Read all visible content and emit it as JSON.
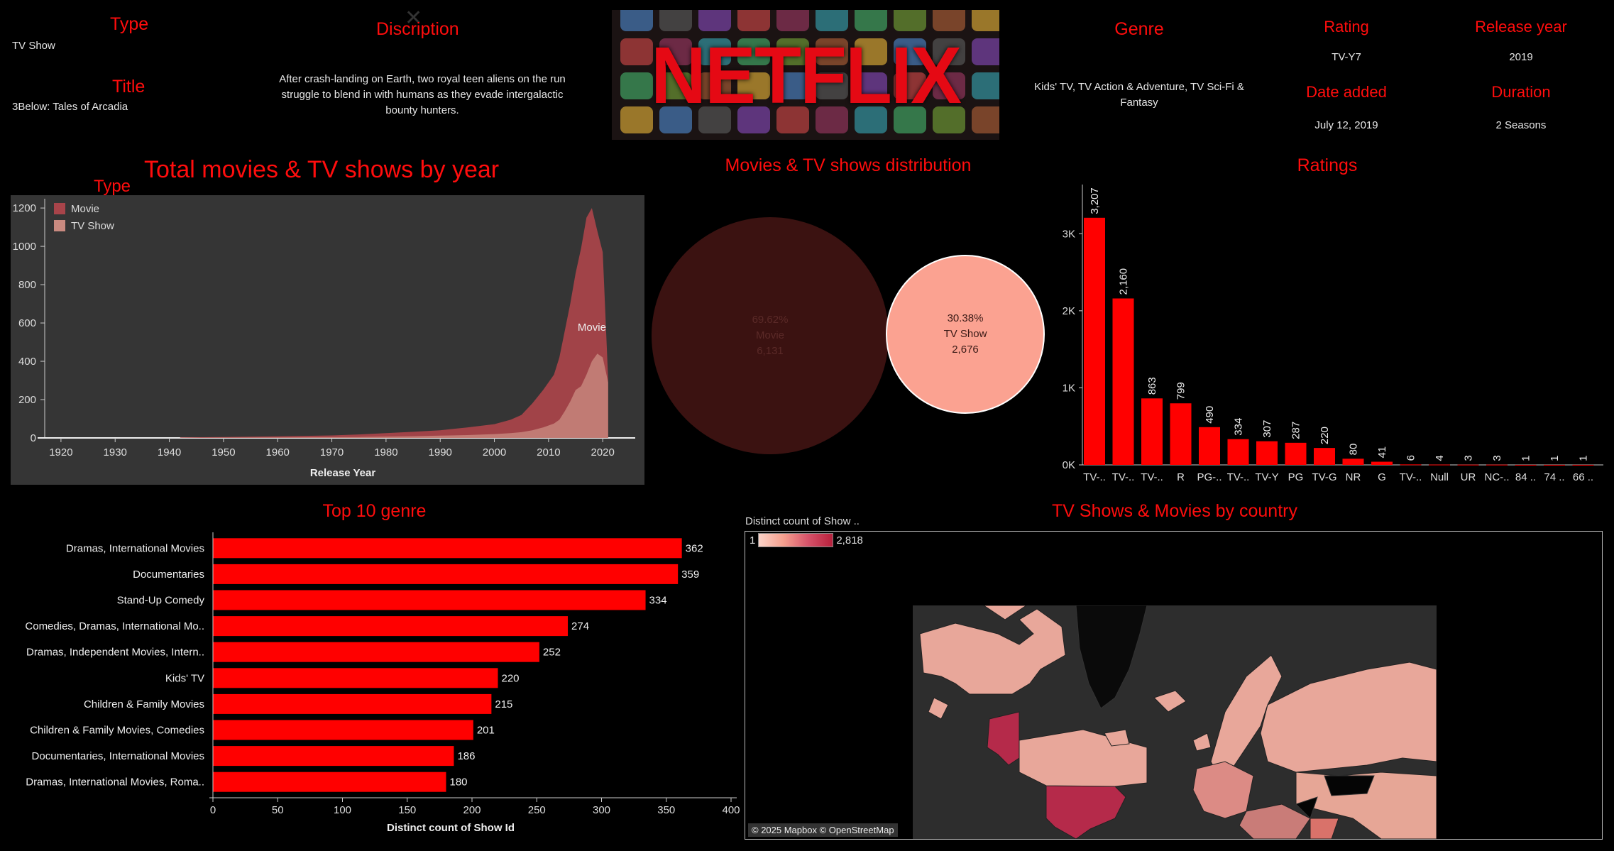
{
  "details": {
    "type_label": "Type",
    "type_value": "TV Show",
    "title_label": "Title",
    "title_value": "3Below: Tales of Arcadia",
    "description_label": "Discription",
    "description_value": "After crash-landing on Earth, two royal teen aliens on the run struggle to blend in with humans as they evade intergalactic bounty hunters.",
    "logo_text": "NETFLIX",
    "genre_label": "Genre",
    "genre_value": "Kids' TV, TV Action & Adventure, TV Sci-Fi & Fantasy",
    "rating_label": "Rating",
    "rating_value": "TV-Y7",
    "release_year_label": "Release year",
    "release_year_value": "2019",
    "date_added_label": "Date added",
    "date_added_value": "July 12, 2019",
    "duration_label": "Duration",
    "duration_value": "2 Seasons"
  },
  "year_chart": {
    "title": "Total movies & TV shows by year",
    "legend_title": "Type",
    "legend": [
      {
        "name": "Movie",
        "color": "#a8444a"
      },
      {
        "name": "TV Show",
        "color": "#c98a80"
      }
    ],
    "mark_label": "Movie",
    "xlabel": "Release Year",
    "x_ticks": [
      "1920",
      "1930",
      "1940",
      "1950",
      "1960",
      "1970",
      "1980",
      "1990",
      "2000",
      "2010",
      "2020"
    ],
    "y_ticks": [
      "0",
      "200",
      "400",
      "600",
      "800",
      "1000",
      "1200"
    ]
  },
  "distribution": {
    "title": "Movies & TV shows distribution",
    "movie_pct": "69.62%",
    "movie_label": "Movie",
    "movie_count": "6,131",
    "tv_pct": "30.38%",
    "tv_label": "TV Show",
    "tv_count": "2,676",
    "movie_color": "#3b1211",
    "tv_color": "#fba291"
  },
  "ratings": {
    "title": "Ratings",
    "y_ticks": [
      "0K",
      "1K",
      "2K",
      "3K"
    ]
  },
  "genres": {
    "title": "Top 10 genre",
    "xlabel": "Distinct count of Show Id",
    "x_ticks": [
      "0",
      "50",
      "100",
      "150",
      "200",
      "250",
      "300",
      "350",
      "400"
    ]
  },
  "country": {
    "title": "TV Shows & Movies by country",
    "legend_title": "Distinct count of Show ..",
    "legend_min": "1",
    "legend_max": "2,818",
    "attribution": "© 2025 Mapbox © OpenStreetMap"
  },
  "chart_data": [
    {
      "type": "area",
      "title": "Total movies & TV shows by year",
      "xlabel": "Release Year",
      "ylabel": "",
      "xlim": [
        1917,
        2026
      ],
      "ylim": [
        0,
        1230
      ],
      "series": [
        {
          "name": "Movie",
          "x": [
            1942,
            1950,
            1960,
            1970,
            1975,
            1980,
            1985,
            1990,
            1995,
            2000,
            2003,
            2005,
            2007,
            2009,
            2011,
            2012,
            2013,
            2014,
            2015,
            2016,
            2017,
            2018,
            2019,
            2020,
            2021
          ],
          "values": [
            3,
            5,
            8,
            13,
            18,
            25,
            32,
            40,
            55,
            72,
            95,
            120,
            180,
            250,
            330,
            420,
            560,
            700,
            860,
            990,
            1150,
            1200,
            1080,
            970,
            310
          ]
        },
        {
          "name": "TV Show",
          "x": [
            1942,
            1950,
            1960,
            1970,
            1975,
            1980,
            1985,
            1990,
            1995,
            2000,
            2003,
            2005,
            2007,
            2009,
            2011,
            2012,
            2013,
            2014,
            2015,
            2016,
            2017,
            2018,
            2019,
            2020,
            2021
          ],
          "values": [
            1,
            2,
            3,
            4,
            5,
            7,
            9,
            12,
            15,
            20,
            25,
            30,
            40,
            55,
            75,
            95,
            140,
            190,
            250,
            270,
            330,
            400,
            440,
            420,
            290
          ]
        }
      ]
    },
    {
      "type": "bubble",
      "title": "Movies & TV shows distribution",
      "categories": [
        "Movie",
        "TV Show"
      ],
      "values": [
        6131,
        2676
      ],
      "percent": [
        69.62,
        30.38
      ]
    },
    {
      "type": "bar",
      "title": "Ratings",
      "categories": [
        "TV-..",
        "TV-..",
        "TV-..",
        "R",
        "PG-..",
        "TV-..",
        "TV-Y",
        "PG",
        "TV-G",
        "NR",
        "G",
        "TV-..",
        "Null",
        "UR",
        "NC-..",
        "84 ..",
        "74 ..",
        "66 .."
      ],
      "values": [
        3207,
        2160,
        863,
        799,
        490,
        334,
        307,
        287,
        220,
        80,
        41,
        6,
        4,
        3,
        3,
        1,
        1,
        1
      ],
      "labels": [
        "3,207",
        "2,160",
        "863",
        "799",
        "490",
        "334",
        "307",
        "287",
        "220",
        "80",
        "41",
        "6",
        "4",
        "3",
        "3",
        "1",
        "1",
        "1"
      ],
      "ylim": [
        0,
        3500
      ]
    },
    {
      "type": "bar",
      "orientation": "horizontal",
      "title": "Top 10 genre",
      "xlabel": "Distinct count of Show Id",
      "categories": [
        "Dramas, International Movies",
        "Documentaries",
        "Stand-Up Comedy",
        "Comedies, Dramas, International Mo..",
        "Dramas, Independent Movies, Intern..",
        "Kids' TV",
        "Children & Family Movies",
        "Children & Family Movies, Comedies",
        "Documentaries, International Movies",
        "Dramas, International Movies, Roma.."
      ],
      "values": [
        362,
        359,
        334,
        274,
        252,
        220,
        215,
        201,
        186,
        180
      ],
      "xlim": [
        0,
        400
      ]
    }
  ]
}
